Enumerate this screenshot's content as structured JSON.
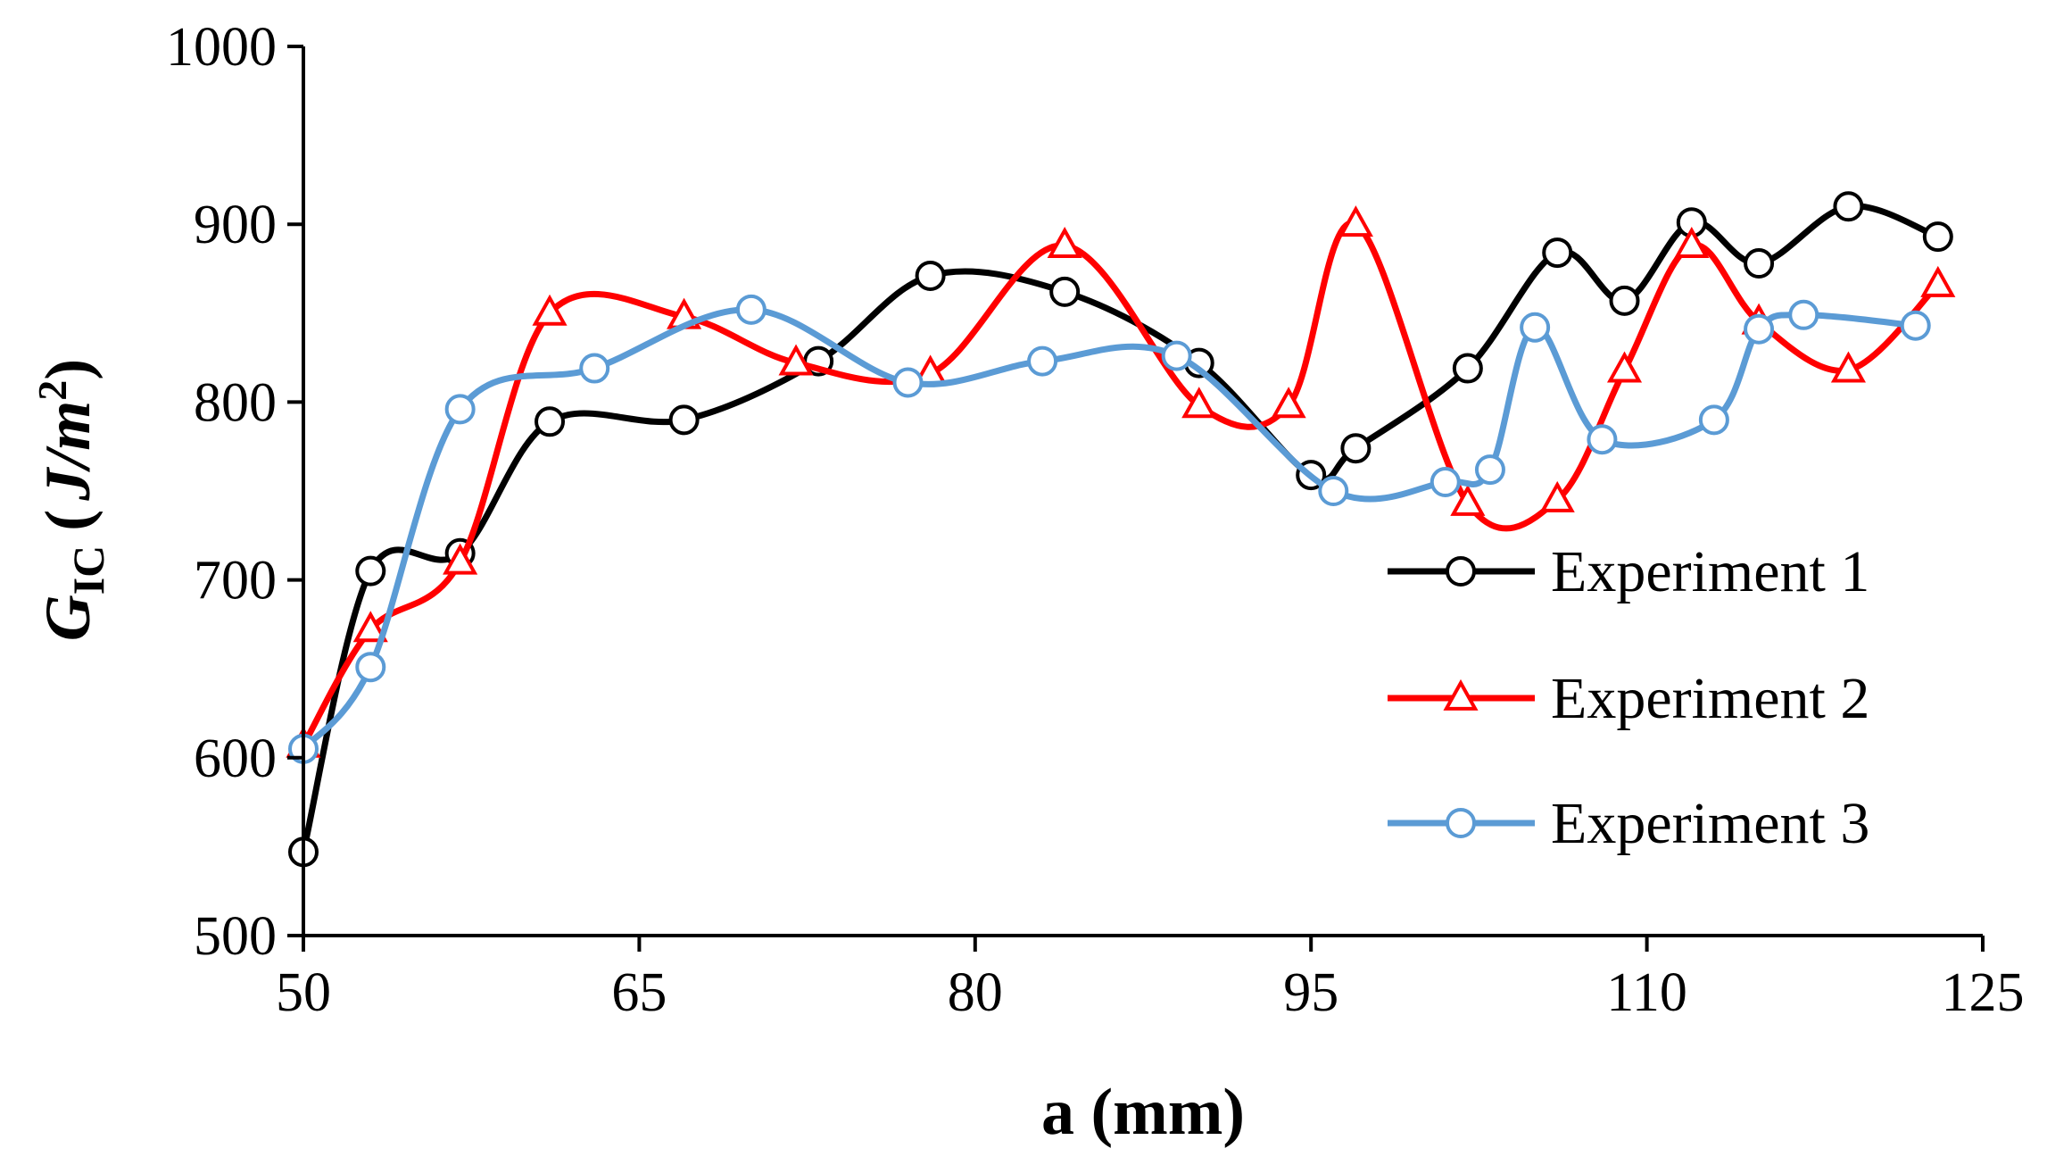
{
  "chart_data": {
    "type": "line",
    "title": "",
    "xlabel": "a (mm)",
    "ylabel_main": "G",
    "ylabel_sub": "IC",
    "ylabel_open": "(",
    "ylabel_unit": "J/m",
    "ylabel_sup": "2",
    "ylabel_close": ")",
    "xlim": [
      50,
      125
    ],
    "ylim": [
      500,
      1000
    ],
    "xticks": [
      50,
      65,
      80,
      95,
      110,
      125
    ],
    "yticks": [
      500,
      600,
      700,
      800,
      900,
      1000
    ],
    "grid": false,
    "legend_position": "right",
    "series": [
      {
        "name": "Experiment 1",
        "color": "#000000",
        "marker": "circle",
        "x": [
          50,
          53,
          57,
          61,
          67,
          73,
          78,
          84,
          90,
          95,
          97,
          102,
          106,
          109,
          112,
          115,
          119,
          123
        ],
        "y": [
          547,
          705,
          715,
          789,
          790,
          823,
          871,
          862,
          822,
          759,
          774,
          819,
          884,
          857,
          901,
          878,
          910,
          893
        ]
      },
      {
        "name": "Experiment 2",
        "color": "#ff0000",
        "marker": "triangle",
        "x": [
          50,
          53,
          57,
          61,
          67,
          72,
          78,
          84,
          90,
          94,
          97,
          102,
          106,
          109,
          112,
          115,
          119,
          123
        ],
        "y": [
          607,
          672,
          710,
          850,
          848,
          822,
          816,
          888,
          798,
          798,
          900,
          743,
          745,
          818,
          888,
          845,
          818,
          866
        ]
      },
      {
        "name": "Experiment 3",
        "color": "#5b9bd5",
        "marker": "circle",
        "x": [
          50,
          53,
          57,
          63,
          70,
          77,
          83,
          89,
          96,
          101,
          103,
          105,
          108,
          113,
          115,
          117,
          122
        ],
        "y": [
          605,
          651,
          796,
          819,
          852,
          811,
          823,
          826,
          750,
          755,
          762,
          842,
          779,
          790,
          841,
          849,
          843
        ]
      }
    ]
  }
}
